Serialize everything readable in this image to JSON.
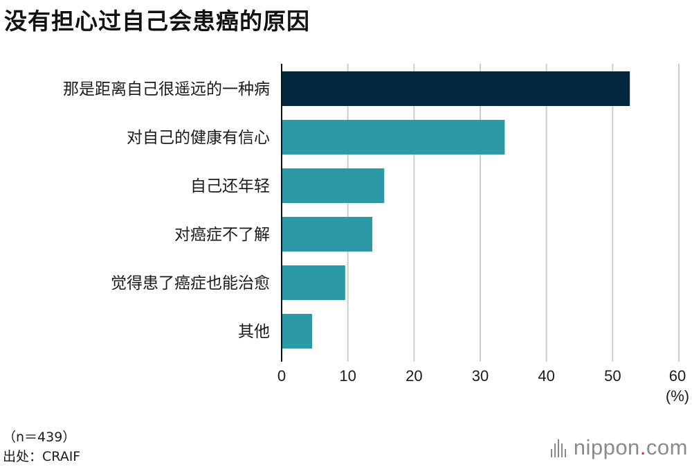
{
  "title": "没有担心过自己会患癌的原因",
  "chart_data": {
    "type": "bar",
    "orientation": "horizontal",
    "categories": [
      "那是距离自己很遥远的一种病",
      "对自己的健康有信心",
      "自己还年轻",
      "对癌症不了解",
      "觉得患了癌症也能治愈",
      "其他"
    ],
    "values": [
      52.6,
      33.7,
      15.5,
      13.7,
      9.6,
      4.6
    ],
    "bar_colors": [
      "#03273f",
      "#2b9aa6",
      "#2b9aa6",
      "#2b9aa6",
      "#2b9aa6",
      "#2b9aa6"
    ],
    "xlim": [
      0,
      60
    ],
    "xticks": [
      "0",
      "10",
      "20",
      "30",
      "40",
      "50",
      "60"
    ],
    "unit_label": "(%)",
    "grid": true
  },
  "footnotes": {
    "sample": "（n＝439）",
    "source": "出处：CRAIF"
  },
  "logo": {
    "text_main": "nippon",
    "text_dot": ".",
    "text_tail": "com"
  }
}
